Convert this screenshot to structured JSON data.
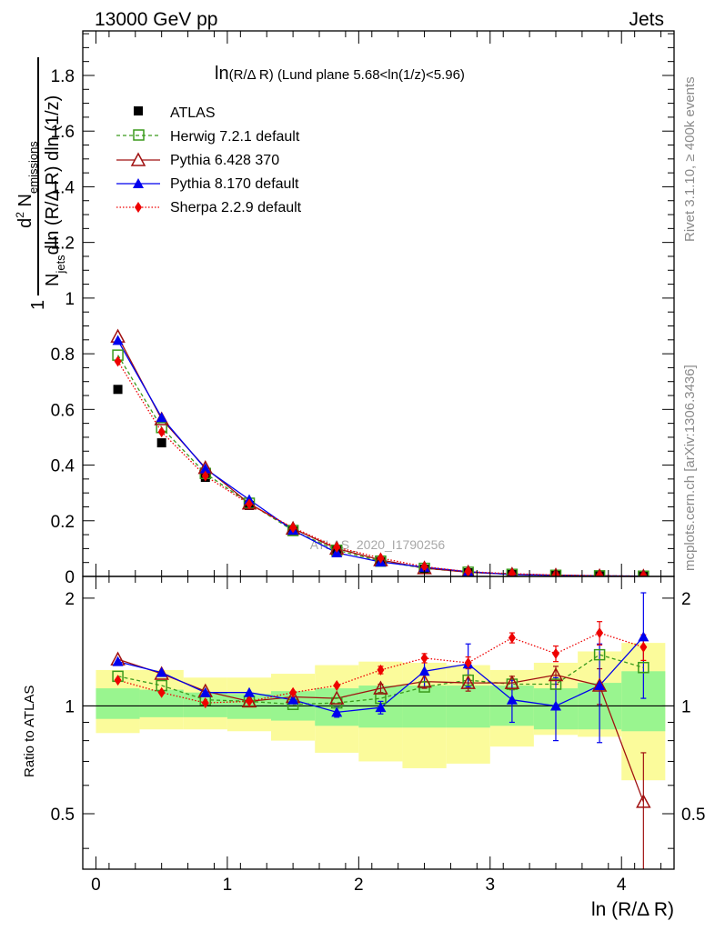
{
  "header": {
    "left": "13000 GeV pp",
    "right": "Jets"
  },
  "side_text": {
    "rivet": "Rivet 3.1.10, ≥ 400k events",
    "mcplots": "mcplots.cern.ch [arXiv:1306.3436]"
  },
  "watermark": "ATLAS_2020_I1790256",
  "colors": {
    "ATLAS": "#000000",
    "Herwig": "#3a9a1c",
    "Pythia6": "#a01010",
    "Pythia8": "#0000ee",
    "Sherpa": "#ee0000",
    "band_inner": "#99f58f",
    "band_outer": "#fbfb9b"
  },
  "chart_data": {
    "type": "line",
    "title": "ln(R/Δ R) (Lund plane 5.68<ln(1/z)<5.96)",
    "title_fn": "ln",
    "title_var": "(R/Δ R)",
    "title_rest": "(Lund plane 5.68<ln(1/z)<5.96)",
    "xlabel": "ln (R/Δ R)",
    "ylabel_main": {
      "one": "1",
      "numer_d": "d",
      "numer_sup": "2",
      "numer_N": "N",
      "numer_sub": "emissions",
      "denom_N": "N",
      "denom_sub": "jets",
      "denom_rest": "dln (R/Δ R) dln (1/z)"
    },
    "ylabel_ratio": "Ratio to ATLAS",
    "xlim": [
      -0.1,
      4.4
    ],
    "ylim_main": [
      0,
      1.96
    ],
    "ylim_ratio": [
      0.35,
      2.3
    ],
    "x_ticks": [
      "0",
      "1",
      "2",
      "3",
      "4"
    ],
    "y_ticks_main": [
      "0",
      "0.2",
      "0.4",
      "0.6",
      "0.8",
      "1",
      "1.2",
      "1.4",
      "1.6",
      "1.8"
    ],
    "y_ticks_ratio": [
      "0.5",
      "1",
      "2"
    ],
    "x": [
      0.167,
      0.5,
      0.833,
      1.167,
      1.5,
      1.833,
      2.167,
      2.5,
      2.833,
      3.167,
      3.5,
      3.833,
      4.167
    ],
    "bin_edges": [
      0,
      0.333,
      0.667,
      1.0,
      1.333,
      1.667,
      2.0,
      2.333,
      2.667,
      3.0,
      3.333,
      3.667,
      4.0,
      4.333
    ],
    "legend": [
      "ATLAS",
      "Herwig 7.2.1 default",
      "Pythia 6.428 370",
      "Pythia 8.170 default",
      "Sherpa 2.2.9 default"
    ],
    "series": [
      {
        "name": "ATLAS",
        "key": "ATLAS",
        "values": [
          0.672,
          0.48,
          0.356,
          0.255,
          0.163,
          0.093,
          0.053,
          0.026,
          0.013,
          0.0065,
          0.0035,
          0.0016,
          0.0007
        ]
      },
      {
        "name": "Herwig 7.2.1 default",
        "key": "Herwig",
        "values": [
          0.795,
          0.535,
          0.37,
          0.263,
          0.165,
          0.094,
          0.055,
          0.029,
          0.015,
          0.0075,
          0.004,
          0.0022,
          0.0009
        ]
      },
      {
        "name": "Pythia 6.428 370",
        "key": "Pythia6",
        "values": [
          0.862,
          0.565,
          0.39,
          0.262,
          0.172,
          0.1,
          0.059,
          0.03,
          0.015,
          0.0075,
          0.0042,
          0.0018,
          0.0004
        ]
      },
      {
        "name": "Pythia 8.170 default",
        "key": "Pythia8",
        "values": [
          0.848,
          0.571,
          0.387,
          0.276,
          0.166,
          0.085,
          0.052,
          0.033,
          0.017,
          0.0068,
          0.0035,
          0.0018,
          0.0011
        ]
      },
      {
        "name": "Sherpa 2.2.9 default",
        "key": "Sherpa",
        "values": [
          0.773,
          0.519,
          0.361,
          0.26,
          0.175,
          0.105,
          0.066,
          0.035,
          0.017,
          0.0099,
          0.0048,
          0.0026,
          0.001
        ]
      }
    ],
    "ratio": {
      "Herwig": [
        1.21,
        1.14,
        1.04,
        1.03,
        1.01,
        1.02,
        1.05,
        1.13,
        1.18,
        1.15,
        1.15,
        1.39,
        1.28
      ],
      "Pythia6": [
        1.35,
        1.23,
        1.1,
        1.03,
        1.06,
        1.05,
        1.12,
        1.17,
        1.16,
        1.16,
        1.22,
        1.14,
        0.54
      ],
      "Pythia8": [
        1.33,
        1.24,
        1.09,
        1.09,
        1.04,
        0.96,
        0.99,
        1.25,
        1.31,
        1.04,
        1.0,
        1.14,
        1.56
      ],
      "Sherpa": [
        1.18,
        1.09,
        1.02,
        1.03,
        1.09,
        1.14,
        1.26,
        1.36,
        1.32,
        1.55,
        1.4,
        1.6,
        1.46
      ]
    },
    "ratio_errors": {
      "Pythia8": [
        0.01,
        0.01,
        0.01,
        0.01,
        0.02,
        0.03,
        0.04,
        0.12,
        0.18,
        0.14,
        0.2,
        0.35,
        0.51
      ],
      "Sherpa": [
        0.01,
        0.01,
        0.01,
        0.01,
        0.01,
        0.02,
        0.03,
        0.04,
        0.05,
        0.05,
        0.07,
        0.12,
        0.12
      ],
      "Pythia6": [
        0.01,
        0.01,
        0.01,
        0.01,
        0.01,
        0.02,
        0.03,
        0.05,
        0.06,
        0.05,
        0.07,
        0.13,
        0.2
      ]
    },
    "band_inner": [
      [
        0.92,
        1.12
      ],
      [
        0.93,
        1.11
      ],
      [
        0.93,
        1.09
      ],
      [
        0.92,
        1.08
      ],
      [
        0.91,
        1.1
      ],
      [
        0.88,
        1.12
      ],
      [
        0.87,
        1.14
      ],
      [
        0.87,
        1.14
      ],
      [
        0.87,
        1.14
      ],
      [
        0.88,
        1.14
      ],
      [
        0.86,
        1.12
      ],
      [
        0.86,
        1.16
      ],
      [
        0.85,
        1.25
      ]
    ],
    "band_outer": [
      [
        0.84,
        1.26
      ],
      [
        0.86,
        1.26
      ],
      [
        0.86,
        1.2
      ],
      [
        0.85,
        1.2
      ],
      [
        0.8,
        1.23
      ],
      [
        0.74,
        1.3
      ],
      [
        0.7,
        1.33
      ],
      [
        0.67,
        1.32
      ],
      [
        0.69,
        1.3
      ],
      [
        0.77,
        1.26
      ],
      [
        0.83,
        1.32
      ],
      [
        0.82,
        1.42
      ],
      [
        0.62,
        1.5
      ]
    ]
  }
}
